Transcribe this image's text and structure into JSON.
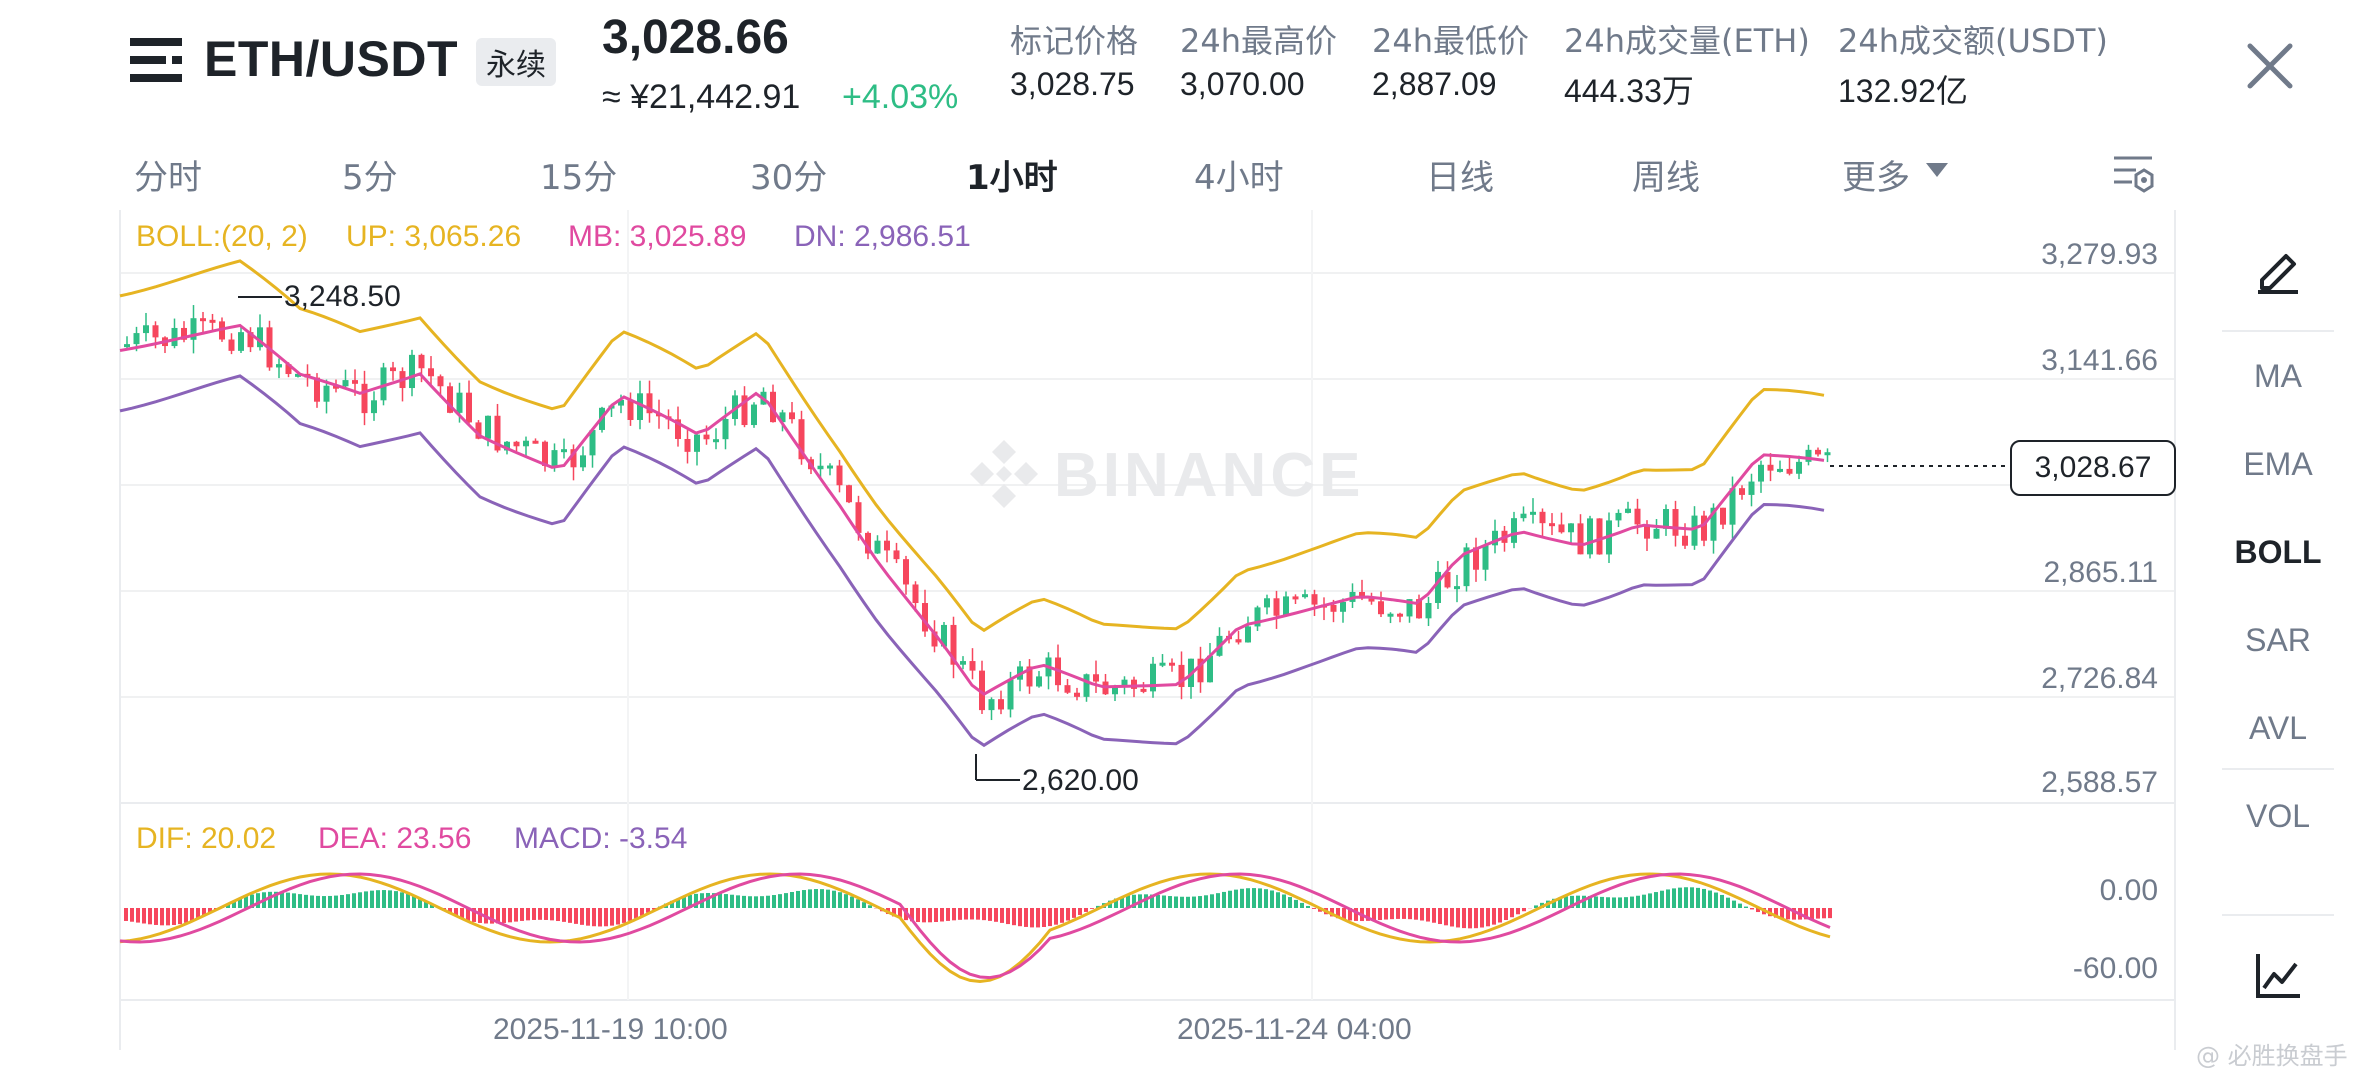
{
  "header": {
    "symbol": "ETH/USDT",
    "contract_type": "永续",
    "last_price": "3,028.66",
    "cny_price": "≈ ¥21,442.91",
    "change_pct": "+4.03%",
    "stats": [
      {
        "label": "标记价格",
        "value": "3,028.75"
      },
      {
        "label": "24h最高价",
        "value": "3,070.00"
      },
      {
        "label": "24h最低价",
        "value": "2,887.09"
      },
      {
        "label": "24h成交量(ETH)",
        "value": "444.33万"
      },
      {
        "label": "24h成交额(USDT)",
        "value": "132.92亿"
      }
    ]
  },
  "intervals": {
    "items": [
      "分时",
      "5分",
      "15分",
      "30分",
      "1小时",
      "4小时",
      "日线",
      "周线",
      "更多"
    ],
    "active": "1小时"
  },
  "indicators": {
    "boll": {
      "params": "BOLL:(20, 2)",
      "up": "UP: 3,065.26",
      "mb": "MB: 3,025.89",
      "dn": "DN: 2,986.51"
    },
    "macd": {
      "dif": "DIF: 20.02",
      "dea": "DEA: 23.56",
      "macd": "MACD: -3.54"
    }
  },
  "price_axis": [
    "3,279.93",
    "3,141.66",
    "2,865.11",
    "2,726.84",
    "2,588.57"
  ],
  "macd_axis": [
    "0.00",
    "-60.00"
  ],
  "current_price_tag": "3,028.67",
  "high_marker": "3,248.50",
  "low_marker": "2,620.00",
  "time_axis": [
    "2025-11-19 10:00",
    "2025-11-24 04:00"
  ],
  "chart_watermark": "BINANCE",
  "side_panel": {
    "items": [
      "MA",
      "EMA",
      "BOLL",
      "SAR",
      "AVL",
      "VOL"
    ],
    "active": "BOLL"
  },
  "footer_watermark": "@ 必胜换盘手",
  "colors": {
    "up": "#2ebd85",
    "down": "#f6465d",
    "boll_up": "#e6b422",
    "boll_mb": "#e04aa0",
    "boll_dn": "#8a63b8",
    "dif": "#e6b422",
    "dea": "#e04aa0",
    "macd_label": "#8a63b8"
  }
}
